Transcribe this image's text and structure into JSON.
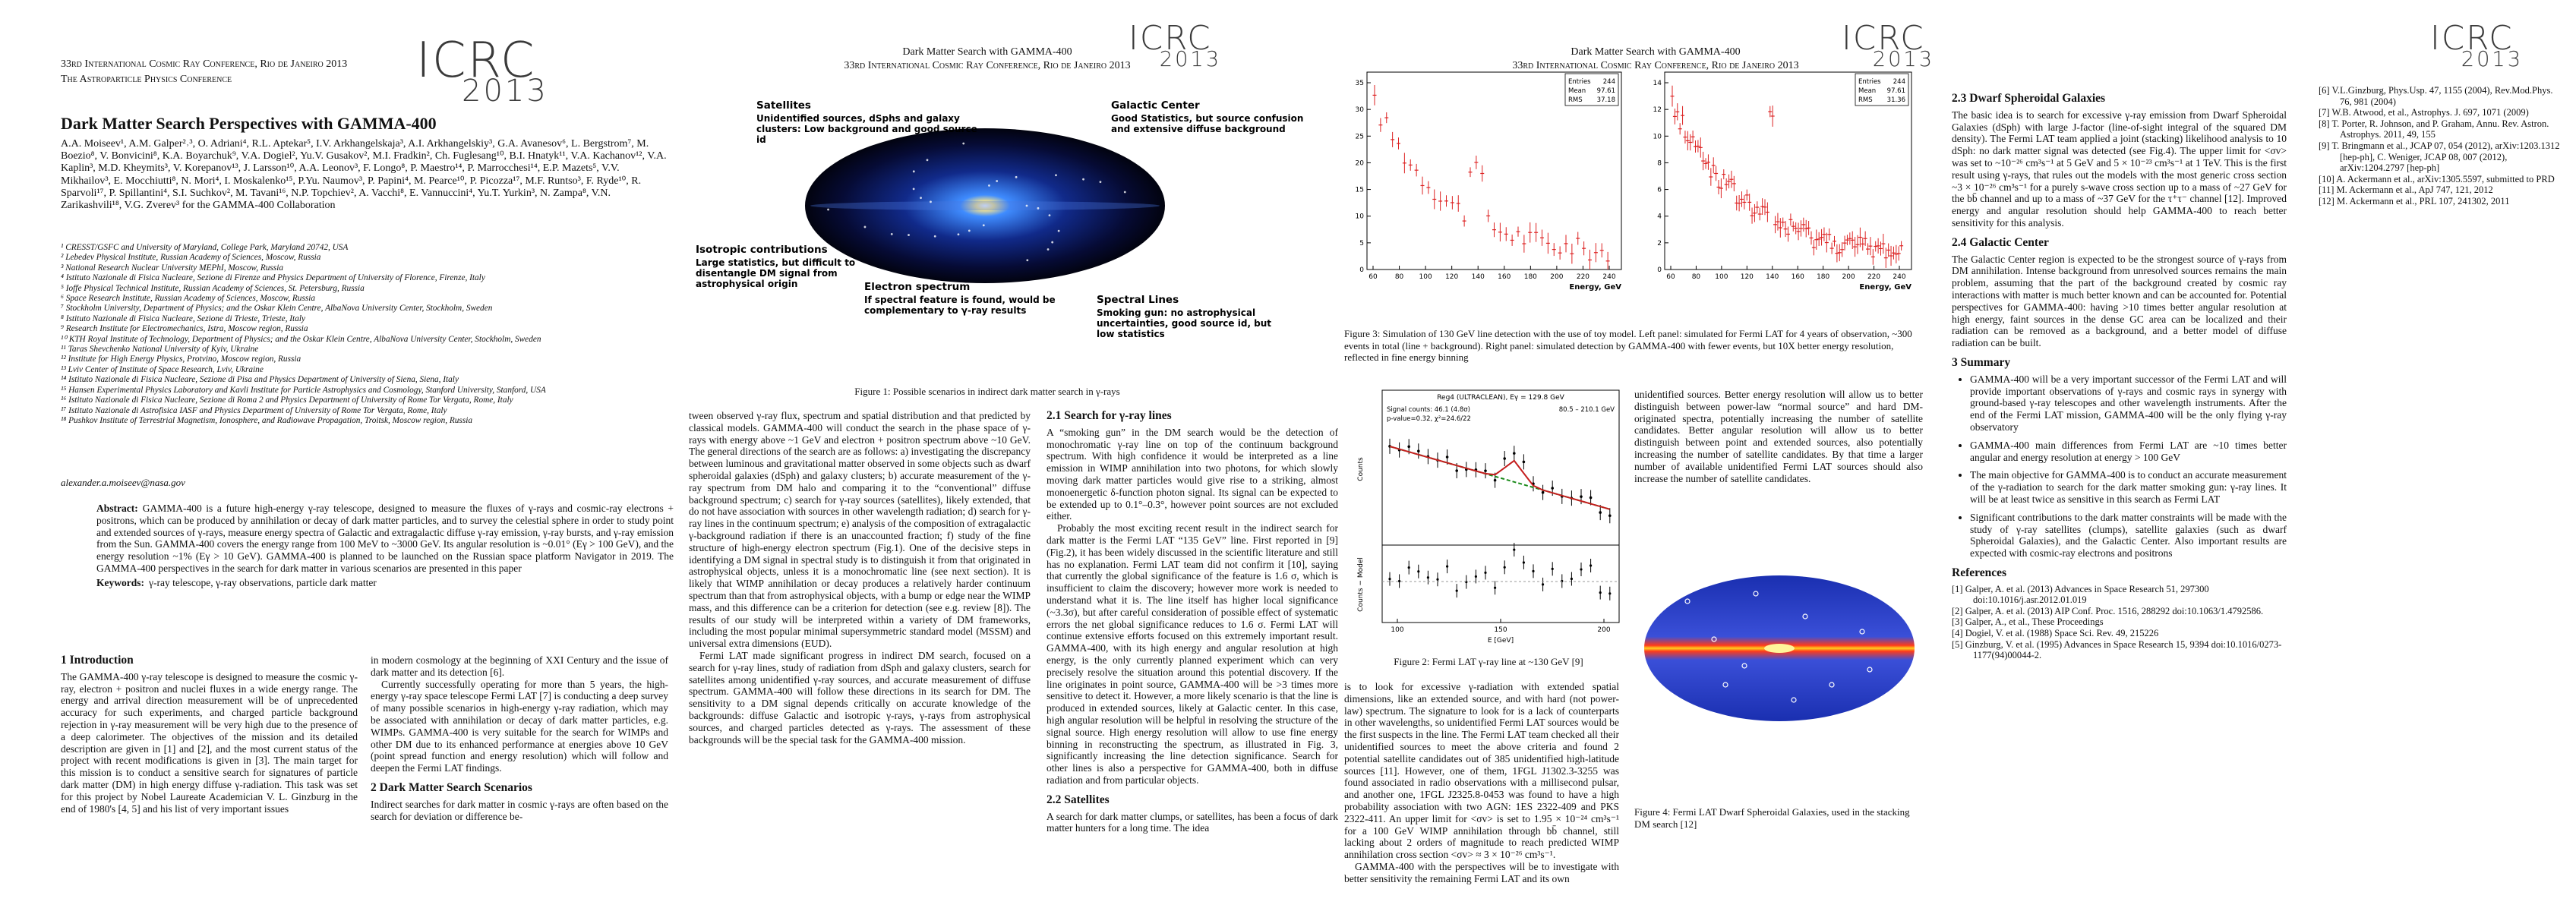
{
  "page1": {
    "conference": "33rd International Cosmic Ray Conference, Rio de Janeiro 2013",
    "conference_subtitle": "The Astroparticle Physics Conference",
    "logo": {
      "name": "ICRC",
      "year": "2013"
    },
    "title": "Dark Matter Search Perspectives with GAMMA-400",
    "authors": "A.A. Moiseev¹, A.M. Galper²˒³, O. Adriani⁴, R.L. Aptekar⁵, I.V. Arkhangelskaja³, A.I. Arkhangelskiy³, G.A. Avanesov⁶, L. Bergstrom⁷, M. Boezio⁸, V. Bonvicini⁸, K.A. Boyarchuk⁹, V.A. Dogiel², Yu.V. Gusakov², M.I. Fradkin², Ch. Fuglesang¹⁰, B.I. Hnatyk¹¹, V.A. Kachanov¹², V.A. Kaplin³, M.D. Kheymits³, V. Korepanov¹³, J. Larsson¹⁰, A.A. Leonov³, F. Longo⁸, P. Maestro¹⁴, P. Marrocchesi¹⁴, E.P. Mazets⁵, V.V. Mikhailov³, E. Mocchiutti⁸, N. Mori⁴, I. Moskalenko¹⁵, P.Yu. Naumov³, P. Papini⁴, M. Pearce¹⁰, P. Picozza¹⁷, M.F. Runtso³, F. Ryde¹⁰, R. Sparvoli¹⁷, P. Spillantini⁴, S.I. Suchkov², M. Tavani¹⁶, N.P. Topchiev², A. Vacchi⁸, E. Vannuccini⁴, Yu.T. Yurkin³, N. Zampa⁸, V.N. Zarikashvili¹⁸, V.G. Zverev³ for the GAMMA-400 Collaboration",
    "affiliations": [
      "¹ CRESST/GSFC and University of Maryland, College Park, Maryland 20742, USA",
      "² Lebedev Physical Institute, Russian Academy of Sciences, Moscow, Russia",
      "³ National Research Nuclear University MEPhI, Moscow, Russia",
      "⁴ Istituto Nazionale di Fisica Nucleare, Sezione di Firenze and Physics Department of University of Florence, Firenze, Italy",
      "⁵ Ioffe Physical Technical Institute, Russian Academy of Sciences, St. Petersburg, Russia",
      "⁶ Space Research Institute, Russian Academy of Sciences, Moscow, Russia",
      "⁷ Stockholm University, Department of Physics; and the Oskar Klein Centre, AlbaNova University Center, Stockholm, Sweden",
      "⁸ Istituto Nazionale di Fisica Nucleare, Sezione di Trieste, Trieste, Italy",
      "⁹ Research Institute for Electromechanics, Istra, Moscow region, Russia",
      "¹⁰ KTH Royal Institute of Technology, Department of Physics; and the Oskar Klein Centre, AlbaNova University Center, Stockholm, Sweden",
      "¹¹ Taras Shevchenko National University of Kyiv, Ukraine",
      "¹² Institute for High Energy Physics, Protvino, Moscow region, Russia",
      "¹³ Lviv Center of Institute of Space Research, Lviv, Ukraine",
      "¹⁴ Istituto Nazionale di Fisica Nucleare, Sezione di Pisa and Physics Department of University of Siena, Siena, Italy",
      "¹⁵ Hansen Experimental Physics Laboratory and Kavli Institute for Particle Astrophysics and Cosmology, Stanford University, Stanford, USA",
      "¹⁶ Istituto Nazionale di Fisica Nucleare, Sezione di Roma 2 and Physics Department of University of Rome Tor Vergata, Rome, Italy",
      "¹⁷ Istituto Nazionale di Astrofisica IASF and Physics Department of University of Rome Tor Vergata, Rome, Italy",
      "¹⁸ Pushkov Institute of Terrestrial Magnetism, Ionosphere, and Radiowave Propagation, Troitsk, Moscow region, Russia"
    ],
    "email": "alexander.a.moiseev@nasa.gov",
    "abstract": {
      "label": "Abstract:",
      "text": "GAMMA-400 is a future high-energy γ-ray telescope, designed to measure the fluxes of γ-rays and cosmic-ray electrons + positrons, which can be produced by annihilation or decay of dark matter particles, and to survey the celestial sphere in order to study point and extended sources of γ-rays, measure energy spectra of Galactic and extragalactic diffuse γ-ray emission, γ-ray bursts, and γ-ray emission from the Sun. GAMMA-400 covers the energy range from 100 MeV to ~3000 GeV. Its angular resolution is ~0.01° (Eγ > 100 GeV), and the energy resolution ~1% (Eγ > 10 GeV). GAMMA-400 is planned to be launched on the Russian space platform Navigator in 2019. The GAMMA-400 perspectives in the search for dark matter in various scenarios are presented in this paper"
    },
    "keywords": {
      "label": "Keywords:",
      "text": "γ-ray telescope, γ-ray observations, particle dark matter"
    },
    "body": [
      [
        {
          "heading": "1 Introduction"
        },
        {
          "text": "The GAMMA-400 γ-ray telescope is designed to measure the cosmic γ-ray, electron + positron and nuclei fluxes in a wide energy range. The energy and arrival direction measurement will be of unprecedented accuracy for such experiments, and charged particle background rejection in γ-ray measurement will be very high due to the presence of a deep calorimeter. The objectives of the mission and its detailed description are given in [1] and [2], and the most current status of the project with recent modifications is given in [3]. The main target for this mission is to conduct a sensitive search for signatures of particle dark matter (DM) in high energy diffuse γ-radiation. This task was set for this project by Nobel Laureate Academician V. L. Ginzburg in the end of 1980's [4, 5] and his list of very important issues"
        }
      ],
      [
        {
          "text": "in modern cosmology at the beginning of XXI Century and the issue of dark matter and its detection [6]."
        },
        {
          "text": "Currently successfully operating for more than 5 years, the high-energy γ-ray space telescope Fermi LAT [7] is conducting a deep survey of many possible scenarios in high-energy γ-ray radiation, which may be associated with annihilation or decay of dark matter particles, e.g. WIMPs. GAMMA-400 is very suitable for the search for WIMPs and other DM due to its enhanced performance at energies above 10 GeV (point spread function and energy resolution) which will follow and deepen the Fermi LAT findings."
        },
        {
          "heading": "2 Dark Matter Search Scenarios"
        },
        {
          "text": "Indirect searches for dark matter in cosmic γ-rays are often based on the search for deviation or difference be-"
        }
      ]
    ]
  },
  "page2": {
    "running_title": "Dark Matter Search with GAMMA-400",
    "conference": "33rd International Cosmic Ray Conference, Rio de Janeiro 2013",
    "logo": {
      "name": "ICRC",
      "year": "2013"
    },
    "figure1": {
      "labels": [
        {
          "heading": "Satellites",
          "text": "Unidentified sources, dSphs and galaxy clusters: Low background and good source id"
        },
        {
          "heading": "Galactic Center",
          "text": "Good Statistics, but source confusion and extensive diffuse background"
        },
        {
          "heading": "Isotropic contributions",
          "text": "Large statistics, but difficult to disentangle DM signal from astrophysical origin"
        },
        {
          "heading": "Electron spectrum",
          "text": "If spectral feature is found, would be complementary to γ-ray results"
        },
        {
          "heading": "Spectral Lines",
          "text": "Smoking gun: no astrophysical uncertainties, good source id, but low statistics"
        }
      ],
      "caption": "Figure 1: Possible scenarios in indirect dark matter search in γ-rays"
    },
    "body": [
      [
        {
          "text": "tween observed γ-ray flux, spectrum and spatial distribution and that predicted by classical models. GAMMA-400 will conduct the search in the phase space of γ-rays with energy above ~1 GeV and electron + positron spectrum above ~10 GeV. The general directions of the search are as follows: a) investigating the discrepancy between luminous and gravitational matter observed in some objects such as dwarf spheroidal galaxies (dSph) and galaxy clusters; b) accurate measurement of the γ-ray spectrum from DM halo and comparing it to the “conventional” diffuse background spectrum; c) search for γ-ray sources (satellites), likely extended, that do not have association with sources in other wavelength radiation; d) search for γ-ray lines in the continuum spectrum; e) analysis of the composition of extragalactic γ-background radiation if there is an unaccounted fraction; f) study of the fine structure of high-energy electron spectrum (Fig.1). One of the decisive steps in identifying a DM signal in spectral study is to distinguish it from that originated in astrophysical objects, unless it is a monochromatic line (see next section). It is likely that WIMP annihilation or decay produces a relatively harder continuum spectrum than that from astrophysical objects, with a bump or edge near the WIMP mass, and this difference can be a criterion for detection (see e.g. review [8]). The results of our study will be interpreted within a variety of DM frameworks, including the most popular minimal supersymmetric standard model (MSSM) and universal extra dimensions (EUD)."
        },
        {
          "text": "Fermi LAT made significant progress in indirect DM search, focused on a search for γ-ray lines, study of radiation from dSph and galaxy clusters, search for satellites among unidentified γ-ray sources, and accurate measurement of diffuse spectrum. GAMMA-400 will follow these directions in its search for DM. The sensitivity to a DM signal depends critically on accurate knowledge of the backgrounds: diffuse Galactic and isotropic γ-rays, γ-rays from astrophysical sources, and charged particles detected as γ-rays. The assessment of these backgrounds will be the special task for the GAMMA-400 mission."
        }
      ],
      [
        {
          "heading": "2.1 Search for γ-ray lines"
        },
        {
          "text": "A “smoking gun” in the DM search would be the detection of monochromatic γ-ray line on top of the continuum background spectrum. With high confidence it would be interpreted as a line emission in WIMP annihilation into two photons, for which slowly moving dark matter particles would give rise to a striking, almost monoenergetic δ-function photon signal. Its signal can be expected to be extended up to 0.1°–0.3°, however point sources are not excluded either."
        },
        {
          "text": "Probably the most exciting recent result in the indirect search for dark matter is the Fermi LAT “135 GeV” line. First reported in [9] (Fig.2), it has been widely discussed in the scientific literature and still has no explanation. Fermi LAT team did not confirm it [10], saying that currently the global significance of the feature is 1.6 σ, which is insufficient to claim the discovery; however more work is needed to understand what it is. The line itself has higher local significance (~3.3σ), but after careful consideration of possible effect of systematic errors the net global significance reduces to 1.6 σ. Fermi LAT will continue extensive efforts focused on this extremely important result. GAMMA-400, with its high energy and angular resolution at high energy, is the only currently planned experiment which can very precisely resolve the situation around this potential discovery. If the line originates in point source, GAMMA-400 will be >3 times more sensitive to detect it. However, a more likely scenario is that the line is produced in extended sources, likely at Galactic center. In this case, high angular resolution will be helpful in resolving the structure of the signal source. High energy resolution will allow to use fine energy binning in reconstructing the spectrum, as illustrated in Fig. 3, significantly increasing the line detection significance. Search for other lines is also a perspective for GAMMA-400, both in diffuse radiation and from particular objects."
        },
        {
          "heading": "2.2 Satellites"
        },
        {
          "text": "A search for dark matter clumps, or satellites, has been a focus of dark matter hunters for a long time. The idea"
        }
      ]
    ]
  },
  "page3": {
    "running_title": "Dark Matter Search with GAMMA-400",
    "conference": "33rd International Cosmic Ray Conference, Rio de Janeiro 2013",
    "logo": {
      "name": "ICRC",
      "year": "2013"
    },
    "figure3": {
      "left": {
        "stats": [
          {
            "label": "Entries",
            "value": "244"
          },
          {
            "label": "Mean",
            "value": "97.61"
          },
          {
            "label": "RMS",
            "value": "37.18"
          }
        ],
        "yticks": [
          0,
          5,
          10,
          15,
          20,
          25,
          30,
          35
        ],
        "xticks": [
          60,
          80,
          100,
          120,
          140,
          160,
          180,
          200,
          220,
          240
        ],
        "xlabel": "Energy, GeV"
      },
      "right": {
        "stats": [
          {
            "label": "Entries",
            "value": "244"
          },
          {
            "label": "Mean",
            "value": "97.61"
          },
          {
            "label": "RMS",
            "value": "31.36"
          }
        ],
        "yticks": [
          0,
          2,
          4,
          6,
          8,
          10,
          12,
          14
        ],
        "xticks": [
          60,
          80,
          100,
          120,
          140,
          160,
          180,
          200,
          220,
          240
        ],
        "xlabel": "Energy, GeV"
      },
      "caption": "Figure 3: Simulation of 130 GeV line detection with the use of toy model. Left panel: simulated for Fermi LAT for 4 years of observation, ~300 events in total (line + background). Right panel: simulated detection by GAMMA-400 with fewer events, but 10X better energy resolution, reflected in fine energy binning"
    },
    "figure2": {
      "title": "Reg4 (ULTRACLEAN), Eγ = 129.8 GeV",
      "notes": [
        "Signal counts: 46.1 (4.8σ)",
        "p-value=0.32, χ²=24.6/22",
        "80.5 – 210.1 GeV"
      ],
      "ylabel_top": "Counts",
      "ylabel_bottom": "Counts − Model",
      "xlabel": "E [GeV]",
      "xticks": [
        100,
        150,
        200
      ],
      "caption": "Figure 2: Fermi LAT γ-ray line at ~130 GeV [9]"
    },
    "figure4": {
      "caption": "Figure 4: Fermi LAT Dwarf Spheroidal Galaxies, used in the stacking DM search [12]"
    },
    "body": [
      [
        {
          "text": "is to look for excessive γ-radiation with extended spatial dimensions, like an extended source, and with hard (not power-law) spectrum. The signature to look for is a lack of counterparts in other wavelengths, so unidentified Fermi LAT sources would be the first suspects in the line. The Fermi LAT team checked all their unidentified sources to meet the above criteria and found 2 potential satellite candidates out of 385 unidentified high-latitude sources [11]. However, one of them, 1FGL J1302.3-3255 was found associated in radio observations with a millisecond pulsar, and another one, 1FGL J2325.8-0453 was found to have a high probability association with two AGN: 1ES 2322-409 and PKS 2322-411. An upper limit for <σv> is set to 1.95 × 10⁻²⁴ cm³s⁻¹ for a 100 GeV WIMP annihilation through bb̄ channel, still lacking about 2 orders of magnitude to reach predicted WIMP annihilation cross section <σv> ≈ 3 × 10⁻²⁶ cm³s⁻¹."
        },
        {
          "text": "GAMMA-400 with the perspectives will be to investigate with better sensitivity the remaining Fermi LAT and its own"
        }
      ],
      [
        {
          "text": "unidentified sources. Better energy resolution will allow us to better distinguish between power-law “normal source” and hard DM-originated spectra, potentially increasing the number of satellite candidates. Better angular resolution will allow us to better distinguish between point and extended sources, also potentially increasing the number of satellite candidates. By that time a larger number of available unidentified Fermi LAT sources should also increase the number of satellite candidates."
        }
      ]
    ]
  },
  "page4": {
    "logo": {
      "name": "ICRC",
      "year": "2013"
    },
    "body": [
      [
        {
          "heading": "2.3 Dwarf Spheroidal Galaxies"
        },
        {
          "text": "The basic idea is to search for excessive γ-ray emission from Dwarf Spheroidal Galaxies (dSph) with large J-factor (line-of-sight integral of the squared DM density). The Fermi LAT team applied a joint (stacking) likelihood analysis to 10 dSph: no dark matter signal was detected (see Fig.4). The upper limit for <σv> was set to ~10⁻²⁶ cm³s⁻¹ at 5 GeV and 5 × 10⁻²³ cm³s⁻¹ at 1 TeV. This is the first result using γ-rays, that rules out the models with the most generic cross section ~3 × 10⁻²⁶ cm³s⁻¹ for a purely s-wave cross section up to a mass of ~27 GeV for the bb̄ channel and up to a mass of ~37 GeV for the τ⁺τ⁻ channel [12]. Improved energy and angular resolution should help GAMMA-400 to reach better sensitivity for this analysis."
        },
        {
          "heading": "2.4 Galactic Center"
        },
        {
          "text": "The Galactic Center region is expected to be the strongest source of γ-rays from DM annihilation. Intense background from unresolved sources remains the main problem, assuming that the part of the background created by cosmic ray interactions with matter is much better known and can be accounted for. Potential perspectives for GAMMA-400: having >10 times better angular resolution at high energy, faint sources in the dense GC area can be localized and their radiation can be removed as a background, and a better model of diffuse radiation can be built."
        },
        {
          "heading": "3 Summary"
        },
        {
          "bullets": [
            "GAMMA-400 will be a very important successor of the Fermi LAT and will provide important observations of γ-rays and cosmic rays in synergy with ground-based γ-ray telescopes and other wavelength instruments. After the end of the Fermi LAT mission, GAMMA-400 will be the only flying γ-ray observatory",
            "GAMMA-400 main differences from Fermi LAT are ~10 times better angular and energy resolution at energy > 100 GeV",
            "The main objective for GAMMA-400 is to conduct an accurate measurement of the γ-radiation to search for the dark matter smoking gun: γ-ray lines. It will be at least twice as sensitive in this search as Fermi LAT",
            "Significant contributions to the dark matter constraints will be made with the study of γ-ray satellites (clumps), satellite galaxies (such as dwarf Spheroidal Galaxies), and the Galactic Center. Also important results are expected with cosmic-ray electrons and positrons"
          ]
        },
        {
          "heading": "References"
        },
        {
          "references": [
            "[1] Galper, A. et al. (2013) Advances in Space Research 51, 297300 doi:10.1016/j.asr.2012.01.019",
            "[2] Galper, A. et al. (2013) AIP Conf. Proc. 1516, 288292 doi:10.1063/1.4792586.",
            "[3] Galper, A., et al., These Proceedings",
            "[4] Dogiel, V. et al. (1988) Space Sci. Rev. 49, 215226",
            "[5] Ginzburg, V. et al. (1995) Advances in Space Research 15, 9394 doi:10.1016/0273-1177(94)00044-2."
          ]
        }
      ],
      [
        {
          "references": [
            "[6] V.L.Ginzburg, Phys.Usp. 47, 1155 (2004), Rev.Mod.Phys. 76, 981 (2004)",
            "[7] W.B. Atwood, et al., Astrophys. J. 697, 1071 (2009)",
            "[8] T. Porter, R. Johnson, and P. Graham, Annu. Rev. Astron. Astrophys. 2011, 49, 155",
            "[9] T. Bringmann et al., JCAP 07, 054 (2012), arXiv:1203.1312 [hep-ph], C. Weniger, JCAP 08, 007 (2012), arXiv:1204.2797 [hep-ph]",
            "[10] A. Ackermann et al., arXiv:1305.5597, submitted to PRD",
            "[11] M. Ackermann et al., ApJ 747, 121, 2012",
            "[12] M. Ackermann et al., PRL 107, 241302, 2011"
          ]
        }
      ]
    ]
  }
}
